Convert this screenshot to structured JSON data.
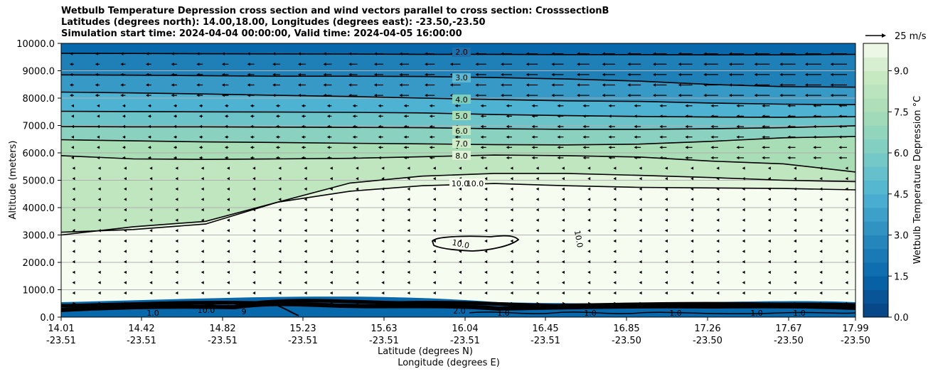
{
  "chart_data": {
    "type": "contour",
    "title_lines": [
      "Wetbulb Temperature Depression cross section and wind vectors parallel to cross section: CrosssectionB",
      "Latitudes (degrees north): 14.00,18.00, Longitudes (degrees east): -23.50,-23.50",
      "Simulation start time: 2024-04-04 00:00:00, Valid time: 2024-04-05 16:00:00"
    ],
    "ylabel": "Altitude (meters)",
    "xlabel": "Latitude (degrees N)",
    "xlabel2": "Longitude (degrees E)",
    "ylim": [
      0,
      10000
    ],
    "y_ticks": [
      "0.0",
      "1000.0",
      "2000.0",
      "3000.0",
      "4000.0",
      "5000.0",
      "6000.0",
      "7000.0",
      "8000.0",
      "9000.0",
      "10000.0"
    ],
    "x_tick_lat": [
      "14.01",
      "14.42",
      "14.82",
      "15.23",
      "15.63",
      "16.04",
      "16.45",
      "16.85",
      "17.26",
      "17.67",
      "17.99"
    ],
    "x_tick_lon": [
      "-23.51",
      "-23.51",
      "-23.51",
      "-23.51",
      "-23.51",
      "-23.51",
      "-23.51",
      "-23.50",
      "-23.50",
      "-23.50",
      "-23.50"
    ],
    "colorbar_label": "Wetbulb Temperature Depression °C",
    "colorbar_ticks": [
      "0.0",
      "1.5",
      "3.0",
      "4.5",
      "6.0",
      "7.5",
      "9.0"
    ],
    "colorbar_range": [
      0,
      10
    ],
    "quiver_key_label": "25 m/s",
    "contour_lines": [
      {
        "level": 2.0,
        "label": "2.0",
        "altitude_m": [
          9640,
          9630,
          9620,
          9615,
          9610,
          9600,
          9600,
          9590,
          9590,
          9580,
          9580,
          9600
        ]
      },
      {
        "level": 3.0,
        "label": "3.0",
        "altitude_m": [
          8850,
          8840,
          8820,
          8800,
          8800,
          8790,
          8750,
          8700,
          8620,
          8500,
          8420,
          8400
        ]
      },
      {
        "level": 4.0,
        "label": "4.0",
        "altitude_m": [
          8220,
          8190,
          8150,
          8100,
          8060,
          8000,
          7950,
          7900,
          7880,
          7820,
          7780,
          7760
        ]
      },
      {
        "level": 5.0,
        "label": "5.0",
        "altitude_m": [
          7520,
          7510,
          7500,
          7490,
          7480,
          7460,
          7400,
          7360,
          7330,
          7310,
          7300,
          7320
        ]
      },
      {
        "level": 6.0,
        "label": "6.0",
        "altitude_m": [
          6960,
          6950,
          6950,
          6940,
          6930,
          6920,
          6880,
          6860,
          6860,
          6880,
          6920,
          6990
        ]
      },
      {
        "level": 7.0,
        "label": "7.0",
        "altitude_m": [
          6480,
          6440,
          6400,
          6380,
          6350,
          6330,
          6300,
          6290,
          6320,
          6420,
          6550,
          6600
        ]
      },
      {
        "level": 8.0,
        "label": "8.0",
        "altitude_m": [
          5900,
          5780,
          5760,
          5780,
          5800,
          5860,
          5920,
          5900,
          5850,
          5700,
          5600,
          5300
        ]
      },
      {
        "level": 9.0,
        "label": "9.0",
        "altitude_m": [
          3100,
          3200,
          3400,
          4200,
          4900,
          5150,
          5250,
          5250,
          5180,
          5100,
          5000,
          4950
        ]
      },
      {
        "level": 10.0,
        "label": "10.0",
        "altitude_m": [
          3000,
          3300,
          3500,
          4200,
          4600,
          4800,
          4880,
          4800,
          4740,
          4720,
          4700,
          4650
        ]
      }
    ],
    "inline_labels": [
      "10.0",
      "10.0",
      "10.0",
      "10.0",
      "10.0",
      "1.0",
      "1.0",
      "1.0",
      "1.0",
      "1.0",
      "1.0",
      "2.0",
      "9"
    ]
  }
}
